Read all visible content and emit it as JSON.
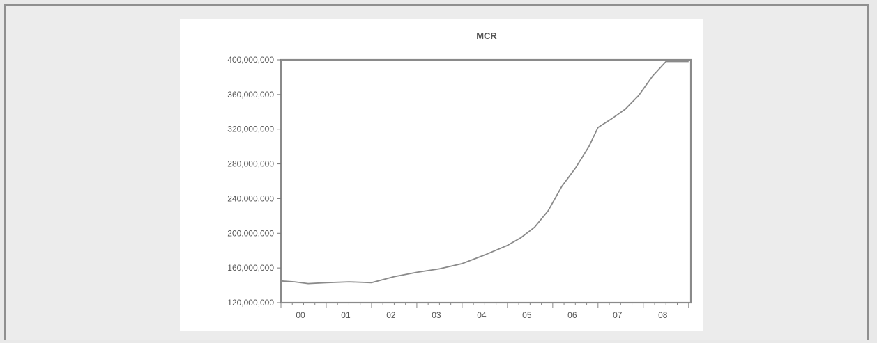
{
  "chart_data": {
    "type": "line",
    "title": "MCR",
    "xlabel": "",
    "ylabel": "",
    "ylim": [
      120000000,
      400000000
    ],
    "yticks": [
      120000000,
      160000000,
      200000000,
      240000000,
      280000000,
      320000000,
      360000000,
      400000000
    ],
    "ytick_labels": [
      "120,000,000",
      "160,000,000",
      "200,000,000",
      "240,000,000",
      "280,000,000",
      "320,000,000",
      "360,000,000",
      "400,000,000"
    ],
    "xlim": [
      0,
      9.05
    ],
    "xticks": [
      0,
      1,
      2,
      3,
      4,
      5,
      6,
      7,
      8
    ],
    "xtick_labels": [
      "00",
      "01",
      "02",
      "03",
      "04",
      "05",
      "06",
      "07",
      "08"
    ],
    "grid": false,
    "series": [
      {
        "x": [
          0.0,
          0.3,
          0.6,
          1.0,
          1.5,
          2.0,
          2.5,
          3.0,
          3.5,
          4.0,
          4.5,
          5.0,
          5.3,
          5.6,
          5.9,
          6.2,
          6.5,
          6.8,
          7.0,
          7.3,
          7.6,
          7.9,
          8.2,
          8.5,
          8.7,
          9.0
        ],
        "values": [
          145000000,
          144000000,
          142000000,
          143000000,
          144000000,
          143000000,
          150000000,
          155000000,
          159000000,
          165000000,
          175000000,
          186000000,
          195000000,
          207000000,
          226000000,
          254000000,
          275000000,
          300000000,
          322000000,
          332000000,
          343000000,
          359000000,
          381000000,
          398000000,
          398000000,
          398000000
        ]
      }
    ]
  }
}
